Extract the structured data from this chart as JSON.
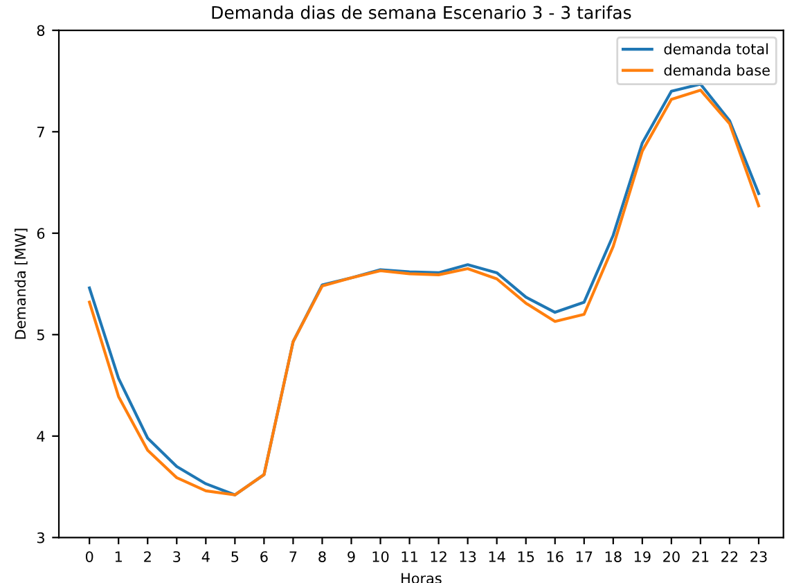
{
  "chart_data": {
    "type": "line",
    "title": "Demanda dias de semana Escenario 3 - 3 tarifas",
    "xlabel": "Horas",
    "ylabel": "Demanda [MW]",
    "x": [
      0,
      1,
      2,
      3,
      4,
      5,
      6,
      7,
      8,
      9,
      10,
      11,
      12,
      13,
      14,
      15,
      16,
      17,
      18,
      19,
      20,
      21,
      22,
      23
    ],
    "series": [
      {
        "name": "demanda total",
        "color": "#1f77b4",
        "values": [
          5.46,
          4.57,
          3.98,
          3.7,
          3.53,
          3.42,
          3.62,
          4.93,
          5.49,
          5.56,
          5.64,
          5.62,
          5.61,
          5.69,
          5.61,
          5.37,
          5.22,
          5.32,
          5.98,
          6.89,
          7.4,
          7.47,
          7.11,
          6.39
        ]
      },
      {
        "name": "demanda base",
        "color": "#ff7f0e",
        "values": [
          5.32,
          4.39,
          3.86,
          3.59,
          3.46,
          3.42,
          3.62,
          4.93,
          5.48,
          5.56,
          5.63,
          5.6,
          5.59,
          5.65,
          5.55,
          5.31,
          5.13,
          5.2,
          5.87,
          6.81,
          7.32,
          7.41,
          7.08,
          6.27
        ]
      }
    ],
    "xlim": [
      -1.05,
      23.85
    ],
    "xticks": [
      0,
      1,
      2,
      3,
      4,
      5,
      6,
      7,
      8,
      9,
      10,
      11,
      12,
      13,
      14,
      15,
      16,
      17,
      18,
      19,
      20,
      21,
      22,
      23
    ],
    "ylim": [
      3,
      8
    ],
    "yticks": [
      3,
      4,
      5,
      6,
      7,
      8
    ],
    "grid": false,
    "legend": "top right",
    "marker": "none",
    "line_style": "solid"
  }
}
